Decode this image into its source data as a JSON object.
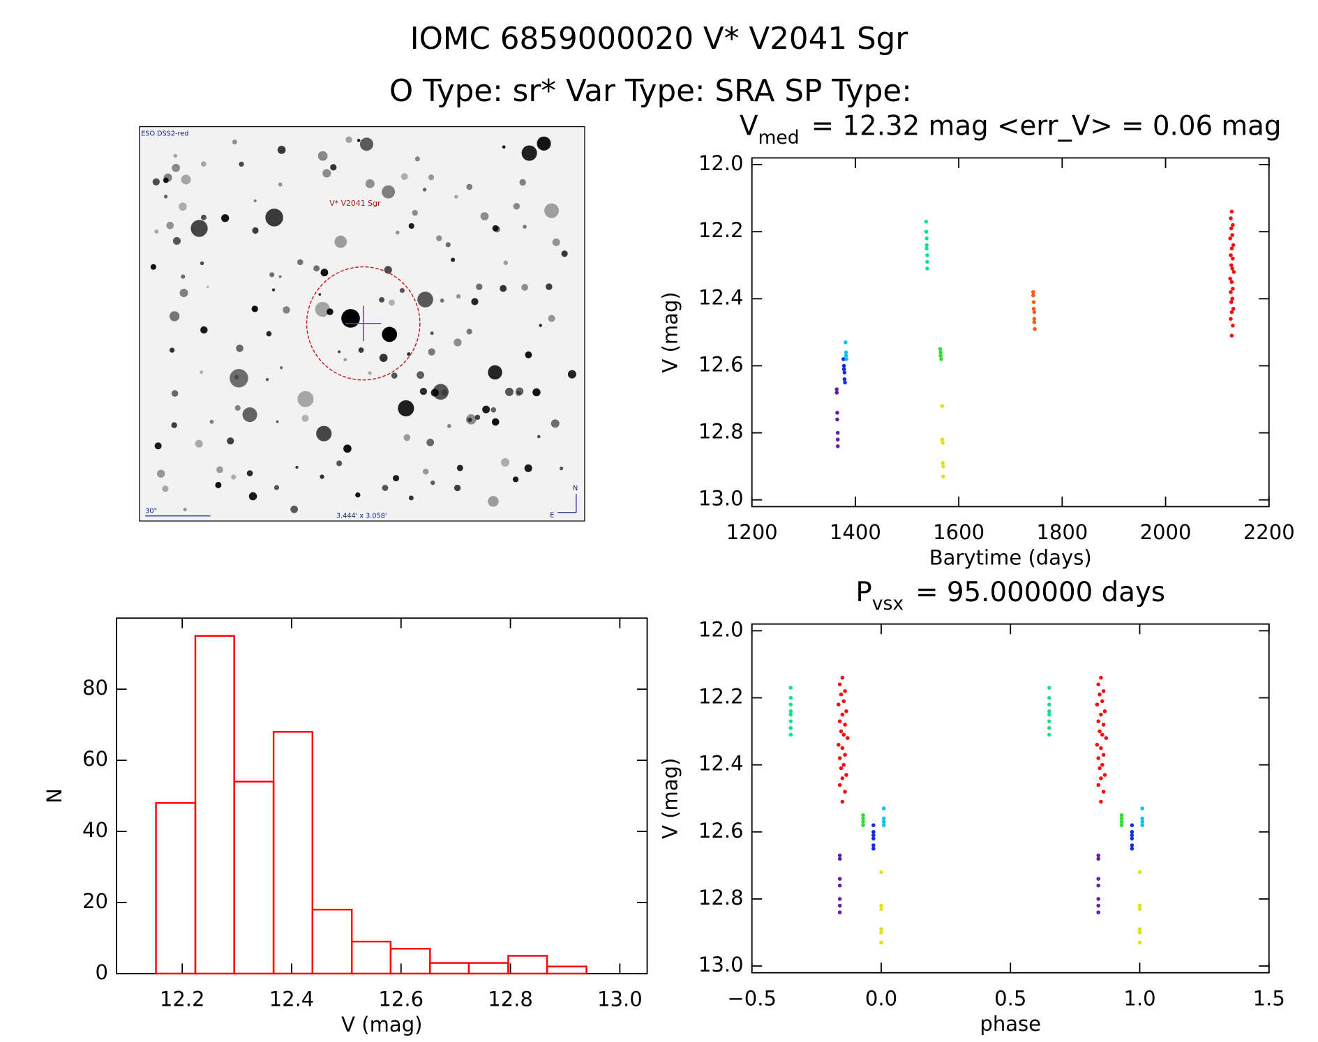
{
  "header": {
    "title": "IOMC 6859000020   V* V2041 Sgr",
    "subtitle": "O Type: sr*  Var Type: SRA  SP Type:"
  },
  "finder_image": {
    "survey": "ESO DSS2-red",
    "target": "V* V2041 Sgr",
    "scale": "30\"",
    "field": "3.444' x 3.058'",
    "north": "N",
    "east": "E"
  },
  "chart_data": [
    {
      "type": "scatter",
      "title": "V",
      "title_subscript": "med",
      "title_suffix": "= 12.32 mag <err_V> = 0.06 mag",
      "x_label": "Barytime (days)",
      "y_label": "V (mag)",
      "xlim": [
        1200,
        2200
      ],
      "xticks": [
        1200,
        1400,
        1600,
        1800,
        2000,
        2200
      ],
      "ylim": [
        13,
        12
      ],
      "yticks": [
        {
          "value": 12,
          "label": "12.0"
        },
        12.2,
        12.4,
        12.6,
        12.8,
        {
          "value": 13,
          "label": "13.0"
        }
      ],
      "series": [
        {
          "color": "#6020a0",
          "x": [
            1364,
            1364,
            1365,
            1365,
            1366,
            1366,
            1366
          ],
          "values": [
            12.67,
            12.68,
            12.74,
            12.76,
            12.8,
            12.82,
            12.84
          ]
        },
        {
          "color": "#1030e0",
          "x": [
            1377,
            1378,
            1378,
            1379,
            1379,
            1380
          ],
          "values": [
            12.58,
            12.6,
            12.61,
            12.62,
            12.64,
            12.65
          ]
        },
        {
          "color": "#10c0f0",
          "x": [
            1381,
            1382,
            1382,
            1383
          ],
          "values": [
            12.53,
            12.56,
            12.57,
            12.58
          ]
        },
        {
          "color": "#10e090",
          "x": [
            1537,
            1537,
            1538,
            1538,
            1538,
            1539,
            1539,
            1539
          ],
          "values": [
            12.17,
            12.2,
            12.22,
            12.24,
            12.25,
            12.27,
            12.29,
            12.31
          ]
        },
        {
          "color": "#30e030",
          "x": [
            1564,
            1565,
            1565,
            1566
          ],
          "values": [
            12.55,
            12.56,
            12.57,
            12.58
          ]
        },
        {
          "color": "#e0e020",
          "x": [
            1568,
            1568,
            1569,
            1569,
            1570,
            1570
          ],
          "values": [
            12.72,
            12.82,
            12.83,
            12.89,
            12.9,
            12.93
          ]
        },
        {
          "color": "#f06010",
          "x": [
            1744,
            1744,
            1745,
            1745,
            1746,
            1746,
            1746,
            1747
          ],
          "values": [
            12.38,
            12.39,
            12.41,
            12.43,
            12.44,
            12.46,
            12.47,
            12.49
          ]
        },
        {
          "color": "#f01010",
          "x": [
            2128,
            2126,
            2130,
            2127,
            2129,
            2125,
            2131,
            2128,
            2126,
            2130,
            2127,
            2129,
            2132,
            2125,
            2128,
            2130,
            2126,
            2129,
            2127,
            2131,
            2128,
            2126,
            2130,
            2128
          ],
          "values": [
            12.14,
            12.16,
            12.18,
            12.19,
            12.21,
            12.22,
            12.24,
            12.25,
            12.27,
            12.28,
            12.3,
            12.31,
            12.32,
            12.34,
            12.35,
            12.37,
            12.38,
            12.4,
            12.41,
            12.43,
            12.44,
            12.46,
            12.48,
            12.51
          ]
        }
      ]
    },
    {
      "type": "histogram",
      "x_label": "V (mag)",
      "y_label": "N",
      "color": "#ff0000",
      "bins": [
        12.152,
        12.224,
        12.295,
        12.367,
        12.438,
        12.51,
        12.581,
        12.653,
        12.724,
        12.796,
        12.867,
        12.939
      ],
      "values": [
        48,
        95,
        54,
        68,
        18,
        9,
        7,
        3,
        3,
        5,
        2
      ],
      "xlim": [
        12.08,
        13.05
      ],
      "xticks": [
        12.2,
        12.4,
        12.6,
        12.8,
        {
          "value": 13,
          "label": "13.0"
        }
      ],
      "ylim": [
        0,
        100
      ],
      "yticks": [
        0,
        20,
        40,
        60,
        80
      ]
    },
    {
      "type": "scatter",
      "title": "P",
      "title_subscript": "vsx",
      "title_suffix": "= 95.000000 days",
      "x_label": "phase",
      "y_label": "V (mag)",
      "xlim": [
        -0.5,
        1.5
      ],
      "xticks": [
        {
          "value": -0.5,
          "label": "−0.5"
        },
        {
          "value": 0,
          "label": "0.0"
        },
        0.5,
        {
          "value": 1,
          "label": "1.0"
        },
        1.5
      ],
      "ylim": [
        13,
        12
      ],
      "yticks": [
        {
          "value": 12,
          "label": "12.0"
        },
        12.2,
        12.4,
        12.6,
        12.8,
        {
          "value": 13,
          "label": "13.0"
        }
      ],
      "series": [
        {
          "color": "#6020a0",
          "x": [
            -0.16,
            -0.16,
            -0.16,
            -0.16,
            -0.16,
            -0.16,
            -0.16,
            0.84,
            0.84,
            0.84,
            0.84,
            0.84,
            0.84,
            0.84
          ],
          "values": [
            12.67,
            12.68,
            12.74,
            12.76,
            12.8,
            12.82,
            12.84,
            12.67,
            12.68,
            12.74,
            12.76,
            12.8,
            12.82,
            12.84
          ]
        },
        {
          "color": "#1030e0",
          "x": [
            -0.03,
            -0.03,
            -0.03,
            -0.03,
            -0.03,
            -0.03,
            0.97,
            0.97,
            0.97,
            0.97,
            0.97,
            0.97
          ],
          "values": [
            12.58,
            12.6,
            12.61,
            12.62,
            12.64,
            12.65,
            12.58,
            12.6,
            12.61,
            12.62,
            12.64,
            12.65
          ]
        },
        {
          "color": "#10c0f0",
          "x": [
            0.01,
            0.01,
            0.01,
            0.01,
            1.01,
            1.01,
            1.01,
            1.01
          ],
          "values": [
            12.53,
            12.56,
            12.57,
            12.58,
            12.53,
            12.56,
            12.57,
            12.58
          ]
        },
        {
          "color": "#10e090",
          "x": [
            -0.35,
            -0.35,
            -0.35,
            -0.35,
            -0.35,
            -0.35,
            -0.35,
            -0.35,
            0.65,
            0.65,
            0.65,
            0.65,
            0.65,
            0.65,
            0.65,
            0.65
          ],
          "values": [
            12.17,
            12.2,
            12.22,
            12.24,
            12.25,
            12.27,
            12.29,
            12.31,
            12.17,
            12.2,
            12.22,
            12.24,
            12.25,
            12.27,
            12.29,
            12.31
          ]
        },
        {
          "color": "#30e030",
          "x": [
            -0.07,
            -0.07,
            -0.07,
            -0.07,
            0.93,
            0.93,
            0.93,
            0.93
          ],
          "values": [
            12.55,
            12.56,
            12.57,
            12.58,
            12.55,
            12.56,
            12.57,
            12.58
          ]
        },
        {
          "color": "#e0e020",
          "x": [
            0,
            0,
            0,
            0,
            0,
            0,
            1,
            1,
            1,
            1,
            1,
            1
          ],
          "values": [
            12.72,
            12.82,
            12.83,
            12.89,
            12.9,
            12.93,
            12.72,
            12.82,
            12.83,
            12.89,
            12.9,
            12.93
          ]
        },
        {
          "color": "#f01010",
          "x": [
            -0.15,
            -0.16,
            -0.14,
            -0.155,
            -0.145,
            -0.165,
            -0.135,
            -0.15,
            -0.16,
            -0.14,
            -0.155,
            -0.145,
            -0.13,
            -0.165,
            -0.15,
            -0.14,
            -0.16,
            -0.145,
            -0.155,
            -0.135,
            -0.15,
            -0.16,
            -0.14,
            -0.15,
            0.85,
            0.84,
            0.86,
            0.845,
            0.855,
            0.835,
            0.865,
            0.85,
            0.84,
            0.86,
            0.845,
            0.855,
            0.87,
            0.835,
            0.85,
            0.86,
            0.84,
            0.855,
            0.845,
            0.865,
            0.85,
            0.84,
            0.86,
            0.85
          ],
          "values": [
            12.14,
            12.16,
            12.18,
            12.19,
            12.21,
            12.22,
            12.24,
            12.25,
            12.27,
            12.28,
            12.3,
            12.31,
            12.32,
            12.34,
            12.35,
            12.37,
            12.38,
            12.4,
            12.41,
            12.43,
            12.44,
            12.46,
            12.48,
            12.51,
            12.14,
            12.16,
            12.18,
            12.19,
            12.21,
            12.22,
            12.24,
            12.25,
            12.27,
            12.28,
            12.3,
            12.31,
            12.32,
            12.34,
            12.35,
            12.37,
            12.38,
            12.4,
            12.41,
            12.43,
            12.44,
            12.46,
            12.48,
            12.51
          ]
        }
      ]
    }
  ]
}
